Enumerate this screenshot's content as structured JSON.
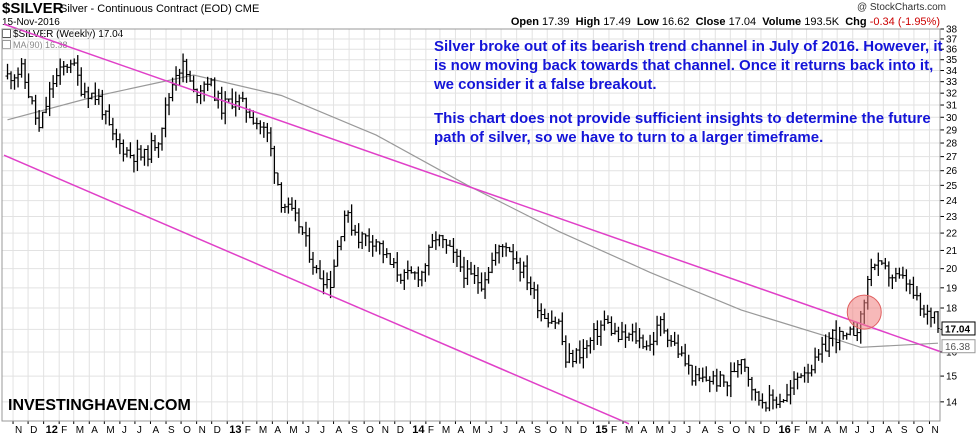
{
  "header": {
    "symbol": "$SILVER",
    "description": "Silver - Continuous Contract (EOD)",
    "exchange": "CME",
    "date": "15-Nov-2016",
    "copyright": "@ StockCharts.com",
    "open_label": "Open",
    "open": "17.39",
    "high_label": "High",
    "high": "17.49",
    "low_label": "Low",
    "low": "16.62",
    "close_label": "Close",
    "close": "17.04",
    "volume_label": "Volume",
    "volume": "193.5K",
    "chg_label": "Chg",
    "chg": "-0.34 (-1.95%)",
    "chg_color": "#cc0000"
  },
  "legend": {
    "price_series": "$SILVER (Weekly) 17.04",
    "ma_series": "MA(90) 16.38"
  },
  "annotation": {
    "paragraph1": "Silver broke out of its bearish trend channel in July of 2016. However, it is now moving back towards that channel. Once it returns back into it, we consider it a false breakout.",
    "paragraph2": "This chart does not provide sufficient insights to determine the future path of silver, so we have to turn to a larger timeframe.",
    "color": "#1414d8"
  },
  "watermark": "INVESTINGHAVEN.COM",
  "colors": {
    "price": "#000000",
    "moving_average": "#999999",
    "trend_channel": "#e040c8",
    "breakout_circle": "#f08080",
    "grid": "#e2e2e2"
  },
  "chart_data": {
    "type": "line",
    "style": "ohlc-bars",
    "scale": "log",
    "frequency": "weekly",
    "ylim": [
      13.3,
      38
    ],
    "y_ticks": [
      14,
      15,
      16,
      17,
      18,
      19,
      20,
      21,
      22,
      23,
      24,
      25,
      26,
      27,
      28,
      29,
      30,
      31,
      32,
      33,
      34,
      35,
      36,
      37,
      38
    ],
    "y_tick_labels": [
      "14",
      "15",
      "16",
      "17",
      "18",
      "19",
      "20",
      "21",
      "22",
      "23",
      "24",
      "25",
      "26",
      "27",
      "28",
      "29",
      "30",
      "31",
      "32",
      "33",
      "34",
      "35",
      "36",
      "37",
      "38"
    ],
    "x_ticks": [
      {
        "label": "N",
        "date": "2011-11-01"
      },
      {
        "label": "D",
        "date": "2011-12-01"
      },
      {
        "label": "12",
        "date": "2012-01-01",
        "bold": true
      },
      {
        "label": "F",
        "date": "2012-02-01"
      },
      {
        "label": "M",
        "date": "2012-03-01"
      },
      {
        "label": "A",
        "date": "2012-04-01"
      },
      {
        "label": "M",
        "date": "2012-05-01"
      },
      {
        "label": "J",
        "date": "2012-06-01"
      },
      {
        "label": "J",
        "date": "2012-07-01"
      },
      {
        "label": "A",
        "date": "2012-08-01"
      },
      {
        "label": "S",
        "date": "2012-09-01"
      },
      {
        "label": "O",
        "date": "2012-10-01"
      },
      {
        "label": "N",
        "date": "2012-11-01"
      },
      {
        "label": "D",
        "date": "2012-12-01"
      },
      {
        "label": "13",
        "date": "2013-01-01",
        "bold": true
      },
      {
        "label": "F",
        "date": "2013-02-01"
      },
      {
        "label": "M",
        "date": "2013-03-01"
      },
      {
        "label": "A",
        "date": "2013-04-01"
      },
      {
        "label": "M",
        "date": "2013-05-01"
      },
      {
        "label": "J",
        "date": "2013-06-01"
      },
      {
        "label": "J",
        "date": "2013-07-01"
      },
      {
        "label": "A",
        "date": "2013-08-01"
      },
      {
        "label": "S",
        "date": "2013-09-01"
      },
      {
        "label": "O",
        "date": "2013-10-01"
      },
      {
        "label": "N",
        "date": "2013-11-01"
      },
      {
        "label": "D",
        "date": "2013-12-01"
      },
      {
        "label": "14",
        "date": "2014-01-01",
        "bold": true
      },
      {
        "label": "F",
        "date": "2014-02-01"
      },
      {
        "label": "M",
        "date": "2014-03-01"
      },
      {
        "label": "A",
        "date": "2014-04-01"
      },
      {
        "label": "M",
        "date": "2014-05-01"
      },
      {
        "label": "J",
        "date": "2014-06-01"
      },
      {
        "label": "J",
        "date": "2014-07-01"
      },
      {
        "label": "A",
        "date": "2014-08-01"
      },
      {
        "label": "S",
        "date": "2014-09-01"
      },
      {
        "label": "O",
        "date": "2014-10-01"
      },
      {
        "label": "N",
        "date": "2014-11-01"
      },
      {
        "label": "D",
        "date": "2014-12-01"
      },
      {
        "label": "15",
        "date": "2015-01-01",
        "bold": true
      },
      {
        "label": "F",
        "date": "2015-02-01"
      },
      {
        "label": "M",
        "date": "2015-03-01"
      },
      {
        "label": "A",
        "date": "2015-04-01"
      },
      {
        "label": "M",
        "date": "2015-05-01"
      },
      {
        "label": "J",
        "date": "2015-06-01"
      },
      {
        "label": "J",
        "date": "2015-07-01"
      },
      {
        "label": "A",
        "date": "2015-08-01"
      },
      {
        "label": "S",
        "date": "2015-09-01"
      },
      {
        "label": "O",
        "date": "2015-10-01"
      },
      {
        "label": "N",
        "date": "2015-11-01"
      },
      {
        "label": "D",
        "date": "2015-12-01"
      },
      {
        "label": "16",
        "date": "2016-01-01",
        "bold": true
      },
      {
        "label": "F",
        "date": "2016-02-01"
      },
      {
        "label": "M",
        "date": "2016-03-01"
      },
      {
        "label": "A",
        "date": "2016-04-01"
      },
      {
        "label": "M",
        "date": "2016-05-01"
      },
      {
        "label": "J",
        "date": "2016-06-01"
      },
      {
        "label": "J",
        "date": "2016-07-01"
      },
      {
        "label": "A",
        "date": "2016-08-01"
      },
      {
        "label": "S",
        "date": "2016-09-01"
      },
      {
        "label": "O",
        "date": "2016-10-01"
      },
      {
        "label": "N",
        "date": "2016-11-01"
      }
    ],
    "series": [
      {
        "name": "$SILVER (Weekly) 17.04",
        "style": "close",
        "x": [
          "2011-10-21",
          "2011-11-18",
          "2011-12-23",
          "2012-01-20",
          "2012-02-24",
          "2012-03-16",
          "2012-04-20",
          "2012-05-18",
          "2012-06-22",
          "2012-07-20",
          "2012-08-17",
          "2012-09-21",
          "2012-10-05",
          "2012-10-26",
          "2012-11-23",
          "2012-12-21",
          "2013-01-18",
          "2013-02-22",
          "2013-03-22",
          "2013-04-19",
          "2013-05-24",
          "2013-06-28",
          "2013-07-26",
          "2013-08-23",
          "2013-09-20",
          "2013-10-25",
          "2013-11-22",
          "2013-12-20",
          "2014-01-24",
          "2014-02-21",
          "2014-03-21",
          "2014-04-25",
          "2014-05-23",
          "2014-06-20",
          "2014-07-11",
          "2014-08-22",
          "2014-09-19",
          "2014-10-24",
          "2014-11-07",
          "2014-12-19",
          "2015-01-23",
          "2015-02-20",
          "2015-03-20",
          "2015-04-24",
          "2015-05-15",
          "2015-06-26",
          "2015-07-24",
          "2015-08-21",
          "2015-09-25",
          "2015-10-23",
          "2015-11-20",
          "2015-12-18",
          "2016-01-22",
          "2016-02-19",
          "2016-03-18",
          "2016-04-22",
          "2016-05-20",
          "2016-06-17",
          "2016-07-08",
          "2016-08-19",
          "2016-09-16",
          "2016-10-21",
          "2016-11-11",
          "2016-11-18"
        ],
        "values": [
          33.5,
          34.0,
          29.0,
          33.0,
          35.0,
          32.5,
          31.5,
          28.3,
          27.2,
          27.0,
          28.4,
          34.0,
          34.4,
          32.0,
          33.2,
          30.8,
          31.6,
          30.0,
          28.6,
          24.0,
          22.5,
          19.8,
          19.3,
          23.2,
          21.8,
          21.6,
          20.2,
          19.5,
          19.8,
          21.8,
          20.9,
          19.6,
          19.3,
          20.8,
          21.4,
          19.5,
          17.8,
          17.3,
          15.6,
          16.2,
          17.4,
          16.6,
          16.7,
          16.3,
          17.3,
          15.8,
          14.8,
          14.9,
          14.7,
          15.9,
          14.2,
          14.0,
          14.2,
          15.2,
          15.5,
          16.8,
          16.5,
          17.4,
          20.3,
          19.6,
          19.3,
          17.6,
          17.8,
          17.04
        ],
        "ohlc_latest": {
          "open": 17.39,
          "high": 17.49,
          "low": 16.62,
          "close": 17.04
        }
      },
      {
        "name": "MA(90) 16.38",
        "x": [
          "2011-10-21",
          "2012-04-20",
          "2012-10-26",
          "2013-04-19",
          "2013-10-25",
          "2014-04-25",
          "2014-10-24",
          "2015-04-24",
          "2015-10-23",
          "2016-04-22",
          "2016-06-17",
          "2016-11-18"
        ],
        "values": [
          29.8,
          31.8,
          33.6,
          31.8,
          28.6,
          25.0,
          22.1,
          19.8,
          17.9,
          16.6,
          16.2,
          16.38
        ]
      }
    ],
    "trendlines": [
      {
        "points": [
          {
            "x": "2011-10-14",
            "y": 38.5
          },
          {
            "x": "2016-11-25",
            "y": 16.0
          }
        ]
      },
      {
        "points": [
          {
            "x": "2011-10-14",
            "y": 27.1
          },
          {
            "x": "2015-03-13",
            "y": 13.2
          }
        ]
      }
    ],
    "highlight": {
      "x": "2016-06-24",
      "y": 17.8
    },
    "last_value_label": "17.04",
    "ma_value_label": "16.38",
    "grid": true
  }
}
